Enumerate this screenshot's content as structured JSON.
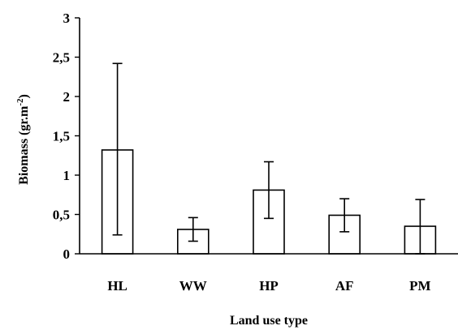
{
  "chart_data": {
    "type": "bar",
    "categories": [
      "HL",
      "WW",
      "HP",
      "AF",
      "PM"
    ],
    "values": [
      1.32,
      0.31,
      0.81,
      0.49,
      0.35
    ],
    "error_low": [
      0.24,
      0.16,
      0.45,
      0.28,
      0.0
    ],
    "error_high": [
      2.42,
      0.46,
      1.17,
      0.7,
      0.69
    ],
    "ylim": [
      0,
      3
    ],
    "yticks": [
      0,
      0.5,
      1,
      1.5,
      2,
      2.5,
      3
    ],
    "ytick_labels": [
      "0",
      "0,5",
      "1",
      "1,5",
      "2",
      "2,5",
      "3"
    ],
    "xlabel": "Land use type",
    "ylabel_text": "Biomass  (gr.m",
    "ylabel_sup": "-2",
    "ylabel_close": ")",
    "grid": false,
    "legend": "none",
    "colors": {
      "bar_fill": "#ffffff",
      "bar_stroke": "#000000"
    }
  }
}
